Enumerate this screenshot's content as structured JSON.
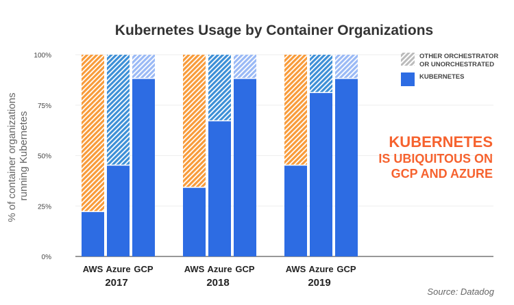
{
  "chart_data": {
    "type": "bar",
    "stacked": true,
    "title": "Kubernetes Usage by Container Organizations",
    "ylabel": [
      "% of container organizations",
      "running Kubernetes"
    ],
    "ylim": [
      0,
      100
    ],
    "yticks": [
      "0%",
      "25%",
      "50%",
      "75%",
      "100%"
    ],
    "grid": true,
    "legend_position": "top-right",
    "legend": [
      {
        "label_lines": [
          "OTHER ORCHESTRATOR",
          "OR UNORCHESTRATED"
        ],
        "style": "hatched-gray"
      },
      {
        "label_lines": [
          "KUBERNETES"
        ],
        "style": "solid-blue",
        "color": "#2d6ce3"
      }
    ],
    "groups": [
      {
        "year": "2017",
        "bars": [
          {
            "category": "AWS",
            "kubernetes": 22,
            "other": 78,
            "other_color": "#f89b3a"
          },
          {
            "category": "Azure",
            "kubernetes": 45,
            "other": 55,
            "other_color": "#3d8fd6"
          },
          {
            "category": "GCP",
            "kubernetes": 88,
            "other": 12,
            "other_color": "#9ab9f5"
          }
        ]
      },
      {
        "year": "2018",
        "bars": [
          {
            "category": "AWS",
            "kubernetes": 34,
            "other": 66,
            "other_color": "#f89b3a"
          },
          {
            "category": "Azure",
            "kubernetes": 67,
            "other": 33,
            "other_color": "#3d8fd6"
          },
          {
            "category": "GCP",
            "kubernetes": 88,
            "other": 12,
            "other_color": "#9ab9f5"
          }
        ]
      },
      {
        "year": "2019",
        "bars": [
          {
            "category": "AWS",
            "kubernetes": 45,
            "other": 55,
            "other_color": "#f89b3a"
          },
          {
            "category": "Azure",
            "kubernetes": 81,
            "other": 19,
            "other_color": "#3d8fd6"
          },
          {
            "category": "GCP",
            "kubernetes": 88,
            "other": 12,
            "other_color": "#9ab9f5"
          }
        ]
      }
    ],
    "kubernetes_color": "#2d6ce3",
    "annotation": [
      "KUBERNETES",
      "IS UBIQUITOUS ON",
      "GCP AND AZURE"
    ],
    "annotation_color": "#f6622e",
    "source": "Source: Datadog"
  }
}
